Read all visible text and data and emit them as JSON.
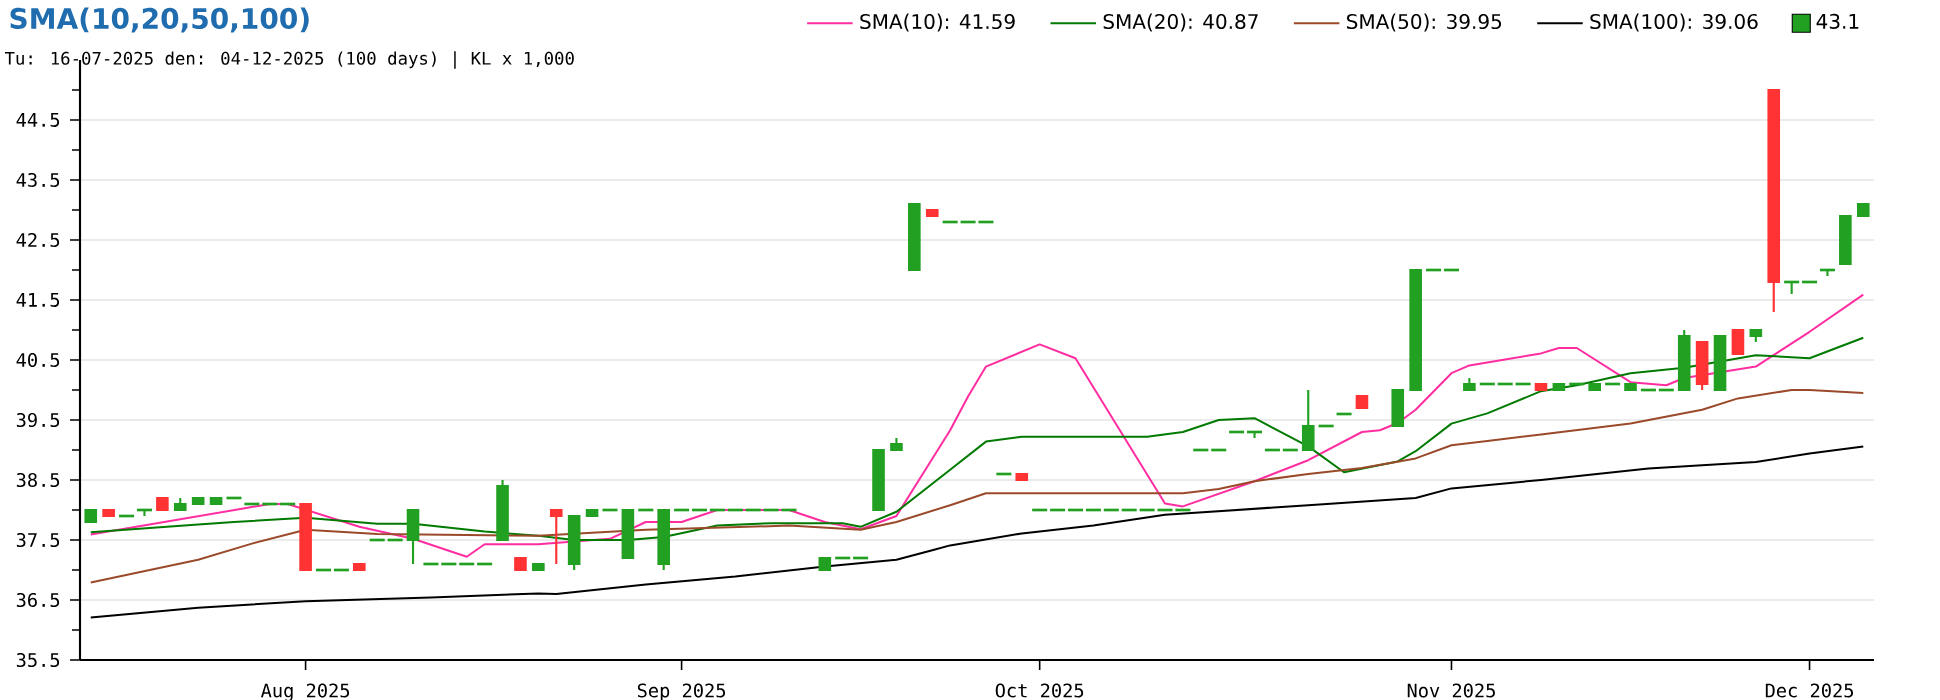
{
  "chart_data": {
    "type": "candlestick",
    "title": "SMA(10,20,50,100)",
    "subtitle": "Tu: 16-07-2025 den: 04-12-2025 (100 days) | KL x 1,000",
    "categories": [
      null,
      null,
      null,
      null,
      null,
      null,
      null,
      null,
      null,
      null,
      null,
      null,
      "Aug 2025",
      null,
      null,
      null,
      null,
      null,
      null,
      null,
      null,
      null,
      null,
      null,
      null,
      null,
      null,
      null,
      null,
      null,
      null,
      null,
      null,
      "Sep 2025",
      null,
      null,
      null,
      null,
      null,
      null,
      null,
      null,
      null,
      null,
      null,
      null,
      null,
      null,
      null,
      null,
      null,
      null,
      null,
      "Oct 2025",
      null,
      null,
      null,
      null,
      null,
      null,
      null,
      null,
      null,
      null,
      null,
      null,
      null,
      null,
      null,
      null,
      null,
      null,
      null,
      null,
      null,
      null,
      "Nov 2025",
      null,
      null,
      null,
      null,
      null,
      null,
      null,
      null,
      null,
      null,
      null,
      null,
      null,
      null,
      null,
      null,
      null,
      null,
      null,
      "Dec 2025",
      null,
      null,
      null
    ],
    "ylim": [
      35.5,
      45.5
    ],
    "yticks": [
      35.5,
      {
        "value": 36,
        "label": null
      },
      36.5,
      {
        "value": 37,
        "label": null
      },
      37.5,
      {
        "value": 38,
        "label": null
      },
      38.5,
      {
        "value": 39,
        "label": null
      },
      39.5,
      {
        "value": 40,
        "label": null
      },
      40.5,
      {
        "value": 41,
        "label": null
      },
      41.5,
      {
        "value": 42,
        "label": null
      },
      42.5,
      {
        "value": 43,
        "label": null
      },
      43.5,
      {
        "value": 44,
        "label": null
      },
      44.5,
      {
        "value": 45,
        "label": null
      }
    ],
    "grid": "y",
    "legend": "top right",
    "series": [
      {
        "name": "SMA(10): 41.59",
        "type": "line",
        "color": "#ff2da0",
        "values": [
          37.59,
          null,
          null,
          null,
          null,
          null,
          null,
          null,
          null,
          null,
          38.1,
          38.1,
          null,
          null,
          null,
          37.72,
          null,
          null,
          37.52,
          null,
          null,
          37.22,
          37.43,
          null,
          null,
          37.43,
          null,
          null,
          null,
          37.52,
          null,
          37.8,
          null,
          37.8,
          null,
          38.0,
          null,
          null,
          null,
          38.0,
          null,
          37.8,
          null,
          37.68,
          null,
          37.9,
          null,
          null,
          39.33,
          39.89,
          40.39,
          null,
          null,
          40.76,
          null,
          40.53,
          null,
          null,
          null,
          null,
          38.11,
          38.06,
          null,
          null,
          null,
          38.48,
          null,
          null,
          38.83,
          null,
          null,
          39.3,
          39.33,
          39.45,
          39.67,
          null,
          40.28,
          40.41,
          null,
          null,
          null,
          40.61,
          40.7,
          40.7,
          null,
          null,
          40.13,
          null,
          40.08,
          40.2,
          null,
          null,
          null,
          40.39,
          null,
          null,
          40.97,
          null,
          null,
          41.59
        ]
      },
      {
        "name": "SMA(20): 40.87",
        "type": "line",
        "color": "#007a00",
        "values": [
          37.63,
          null,
          null,
          null,
          null,
          null,
          37.76,
          null,
          37.8,
          null,
          null,
          null,
          37.87,
          null,
          null,
          null,
          37.77,
          null,
          37.77,
          null,
          null,
          null,
          37.64,
          null,
          null,
          37.57,
          null,
          37.5,
          null,
          null,
          37.5,
          null,
          37.55,
          null,
          null,
          37.74,
          null,
          null,
          37.78,
          null,
          null,
          null,
          37.78,
          37.72,
          null,
          37.97,
          null,
          null,
          38.67,
          null,
          39.14,
          null,
          39.22,
          null,
          null,
          null,
          null,
          null,
          null,
          39.22,
          null,
          39.3,
          null,
          39.5,
          null,
          39.53,
          null,
          null,
          39.06,
          null,
          38.63,
          null,
          null,
          38.81,
          38.98,
          null,
          39.44,
          null,
          39.61,
          null,
          null,
          39.98,
          null,
          40.08,
          null,
          null,
          40.28,
          null,
          null,
          40.37,
          null,
          null,
          null,
          40.58,
          null,
          null,
          40.53,
          null,
          null,
          40.87
        ]
      },
      {
        "name": "SMA(50): 39.95",
        "type": "line",
        "color": "#9a4a2a",
        "values": [
          36.79,
          null,
          null,
          null,
          null,
          null,
          37.17,
          null,
          null,
          37.44,
          null,
          null,
          37.67,
          null,
          null,
          null,
          37.6,
          null,
          null,
          null,
          null,
          null,
          null,
          null,
          null,
          37.57,
          null,
          null,
          null,
          null,
          null,
          37.67,
          null,
          null,
          null,
          null,
          null,
          null,
          null,
          37.74,
          null,
          null,
          null,
          37.67,
          null,
          37.8,
          null,
          null,
          38.08,
          null,
          38.28,
          null,
          38.28,
          null,
          null,
          null,
          null,
          null,
          null,
          null,
          null,
          38.28,
          null,
          38.35,
          null,
          38.48,
          null,
          null,
          38.6,
          null,
          null,
          38.7,
          null,
          null,
          38.86,
          null,
          39.08,
          null,
          39.15,
          null,
          null,
          39.26,
          null,
          null,
          null,
          null,
          39.44,
          null,
          null,
          null,
          39.67,
          null,
          39.86,
          null,
          null,
          40.0,
          40.0,
          null,
          null,
          39.95
        ]
      },
      {
        "name": "SMA(100): 39.06",
        "type": "line",
        "color": "#000000",
        "values": [
          36.21,
          null,
          null,
          null,
          null,
          null,
          36.37,
          null,
          null,
          null,
          null,
          null,
          36.48,
          null,
          null,
          null,
          null,
          null,
          null,
          36.54,
          null,
          null,
          null,
          null,
          null,
          36.61,
          36.6,
          null,
          null,
          null,
          null,
          36.76,
          null,
          null,
          null,
          null,
          36.89,
          null,
          null,
          null,
          null,
          37.06,
          null,
          null,
          null,
          37.17,
          null,
          37.33,
          37.41,
          null,
          null,
          null,
          37.61,
          null,
          null,
          null,
          37.74,
          null,
          null,
          null,
          37.92,
          null,
          null,
          null,
          null,
          null,
          null,
          null,
          38.08,
          null,
          null,
          null,
          null,
          null,
          38.2,
          null,
          38.36,
          null,
          null,
          null,
          null,
          38.5,
          null,
          null,
          null,
          null,
          null,
          38.69,
          null,
          null,
          null,
          null,
          null,
          38.8,
          null,
          null,
          38.94,
          null,
          null,
          39.06
        ]
      },
      {
        "name": "43.1",
        "color": "#22a022",
        "colors": [
          "#22a022",
          "#ff3333",
          "#22a022",
          "#22a022",
          "#ff3333",
          "#22a022",
          "#22a022",
          "#22a022",
          "#22a022",
          "#22a022",
          "#22a022",
          "#22a022",
          "#ff3333",
          "#22a022",
          "#22a022",
          "#ff3333",
          "#22a022",
          "#22a022",
          "#22a022",
          "#22a022",
          "#22a022",
          "#22a022",
          "#22a022",
          "#22a022",
          "#ff3333",
          "#22a022",
          "#ff3333",
          "#22a022",
          "#22a022",
          "#22a022",
          "#22a022",
          "#22a022",
          "#22a022",
          "#22a022",
          "#22a022",
          "#22a022",
          "#22a022",
          "#22a022",
          "#22a022",
          "#22a022",
          null,
          "#22a022",
          "#22a022",
          "#22a022",
          "#22a022",
          "#22a022",
          "#22a022",
          "#ff3333",
          "#22a022",
          "#22a022",
          "#22a022",
          "#22a022",
          "#ff3333",
          "#22a022",
          "#22a022",
          "#22a022",
          "#22a022",
          "#22a022",
          "#22a022",
          "#22a022",
          "#22a022",
          "#22a022",
          "#22a022",
          "#22a022",
          "#22a022",
          "#22a022",
          "#22a022",
          "#22a022",
          "#22a022",
          "#22a022",
          "#22a022",
          "#ff3333",
          null,
          "#22a022",
          "#22a022",
          "#22a022",
          "#22a022",
          "#22a022",
          "#22a022",
          "#22a022",
          "#22a022",
          "#ff3333",
          "#22a022",
          "#22a022",
          "#22a022",
          "#22a022",
          "#22a022",
          "#22a022",
          "#22a022",
          "#22a022",
          "#ff3333",
          "#22a022",
          "#ff3333",
          "#22a022",
          "#ff3333",
          "#22a022",
          "#22a022",
          "#22a022",
          "#22a022",
          "#22a022"
        ],
        "ohlc": [
          [
            37.8,
            38.0,
            37.8,
            38.0
          ],
          [
            38.0,
            38.0,
            37.9,
            37.9
          ],
          [
            37.9,
            37.9,
            37.9,
            37.9
          ],
          [
            38.0,
            38.0,
            37.9,
            38.0
          ],
          [
            38.2,
            38.2,
            38.0,
            38.0
          ],
          [
            38.0,
            38.2,
            38.0,
            38.1
          ],
          [
            38.1,
            38.2,
            38.1,
            38.2
          ],
          [
            38.1,
            38.2,
            38.1,
            38.2
          ],
          [
            38.2,
            38.2,
            38.2,
            38.2
          ],
          [
            38.1,
            38.1,
            38.1,
            38.1
          ],
          [
            38.1,
            38.1,
            38.1,
            38.1
          ],
          [
            38.1,
            38.1,
            38.1,
            38.1
          ],
          [
            38.1,
            38.1,
            37.0,
            37.0
          ],
          [
            37.0,
            37.0,
            37.0,
            37.0
          ],
          [
            37.0,
            37.0,
            37.0,
            37.0
          ],
          [
            37.1,
            37.1,
            37.0,
            37.0
          ],
          [
            37.5,
            37.5,
            37.5,
            37.5
          ],
          [
            37.5,
            37.5,
            37.5,
            37.5
          ],
          [
            37.5,
            38.0,
            37.1,
            38.0
          ],
          [
            37.1,
            37.1,
            37.1,
            37.1
          ],
          [
            37.1,
            37.1,
            37.1,
            37.1
          ],
          [
            37.1,
            37.1,
            37.1,
            37.1
          ],
          [
            37.1,
            37.1,
            37.1,
            37.1
          ],
          [
            37.5,
            38.5,
            37.5,
            38.4
          ],
          [
            37.2,
            37.2,
            37.0,
            37.0
          ],
          [
            37.0,
            37.1,
            37.0,
            37.1
          ],
          [
            38.0,
            38.0,
            37.1,
            37.9
          ],
          [
            37.1,
            37.9,
            37.0,
            37.9
          ],
          [
            37.9,
            38.0,
            37.9,
            38.0
          ],
          [
            38.0,
            38.0,
            38.0,
            38.0
          ],
          [
            37.2,
            38.0,
            37.2,
            38.0
          ],
          [
            38.0,
            38.0,
            38.0,
            38.0
          ],
          [
            37.1,
            38.0,
            37.0,
            38.0
          ],
          [
            38.0,
            38.0,
            38.0,
            38.0
          ],
          [
            38.0,
            38.0,
            38.0,
            38.0
          ],
          [
            38.0,
            38.0,
            38.0,
            38.0
          ],
          [
            38.0,
            38.0,
            38.0,
            38.0
          ],
          [
            38.0,
            38.0,
            38.0,
            38.0
          ],
          [
            38.0,
            38.0,
            38.0,
            38.0
          ],
          [
            38.0,
            38.0,
            38.0,
            38.0
          ],
          null,
          [
            37.0,
            37.2,
            37.0,
            37.2
          ],
          [
            37.2,
            37.2,
            37.2,
            37.2
          ],
          [
            37.2,
            37.2,
            37.2,
            37.2
          ],
          [
            38.0,
            39.0,
            38.0,
            39.0
          ],
          [
            39.0,
            39.2,
            39.0,
            39.1
          ],
          [
            42.0,
            43.1,
            42.0,
            43.1
          ],
          [
            43.0,
            43.0,
            42.9,
            42.9
          ],
          [
            42.8,
            42.8,
            42.8,
            42.8
          ],
          [
            42.8,
            42.8,
            42.8,
            42.8
          ],
          [
            42.8,
            42.8,
            42.8,
            42.8
          ],
          [
            38.6,
            38.6,
            38.6,
            38.6
          ],
          [
            38.6,
            38.6,
            38.5,
            38.5
          ],
          [
            38.0,
            38.0,
            38.0,
            38.0
          ],
          [
            38.0,
            38.0,
            38.0,
            38.0
          ],
          [
            38.0,
            38.0,
            38.0,
            38.0
          ],
          [
            38.0,
            38.0,
            38.0,
            38.0
          ],
          [
            38.0,
            38.0,
            38.0,
            38.0
          ],
          [
            38.0,
            38.0,
            38.0,
            38.0
          ],
          [
            38.0,
            38.0,
            38.0,
            38.0
          ],
          [
            38.0,
            38.0,
            38.0,
            38.0
          ],
          [
            38.0,
            38.0,
            38.0,
            38.0
          ],
          [
            39.0,
            39.0,
            39.0,
            39.0
          ],
          [
            39.0,
            39.0,
            39.0,
            39.0
          ],
          [
            39.3,
            39.3,
            39.3,
            39.3
          ],
          [
            39.3,
            39.3,
            39.2,
            39.3
          ],
          [
            39.0,
            39.0,
            39.0,
            39.0
          ],
          [
            39.0,
            39.0,
            39.0,
            39.0
          ],
          [
            39.0,
            40.0,
            39.0,
            39.4
          ],
          [
            39.4,
            39.4,
            39.4,
            39.4
          ],
          [
            39.6,
            39.6,
            39.6,
            39.6
          ],
          [
            39.9,
            39.9,
            39.7,
            39.7
          ],
          null,
          [
            39.4,
            40.0,
            39.4,
            40.0
          ],
          [
            40.0,
            42.0,
            40.0,
            42.0
          ],
          [
            42.0,
            42.0,
            42.0,
            42.0
          ],
          [
            42.0,
            42.0,
            42.0,
            42.0
          ],
          [
            40.0,
            40.2,
            40.0,
            40.1
          ],
          [
            40.1,
            40.1,
            40.1,
            40.1
          ],
          [
            40.1,
            40.1,
            40.1,
            40.1
          ],
          [
            40.1,
            40.1,
            40.1,
            40.1
          ],
          [
            40.1,
            40.1,
            40.0,
            40.0
          ],
          [
            40.0,
            40.1,
            40.0,
            40.1
          ],
          [
            40.1,
            40.1,
            40.1,
            40.1
          ],
          [
            40.0,
            40.1,
            40.0,
            40.1
          ],
          [
            40.1,
            40.1,
            40.1,
            40.1
          ],
          [
            40.0,
            40.1,
            40.0,
            40.1
          ],
          [
            40.0,
            40.0,
            40.0,
            40.0
          ],
          [
            40.0,
            40.0,
            40.0,
            40.0
          ],
          [
            40.0,
            41.0,
            40.0,
            40.9
          ],
          [
            40.8,
            40.8,
            40.0,
            40.1
          ],
          [
            40.0,
            40.9,
            40.0,
            40.9
          ],
          [
            41.0,
            41.0,
            40.6,
            40.6
          ],
          [
            40.9,
            41.0,
            40.8,
            41.0
          ],
          [
            45.0,
            45.0,
            41.3,
            41.8
          ],
          [
            41.8,
            41.8,
            41.6,
            41.8
          ],
          [
            41.8,
            41.8,
            41.8,
            41.8
          ],
          [
            42.0,
            42.0,
            41.9,
            42.0
          ],
          [
            42.1,
            42.9,
            42.1,
            42.9
          ],
          [
            42.9,
            43.1,
            42.9,
            43.1
          ]
        ]
      }
    ]
  }
}
